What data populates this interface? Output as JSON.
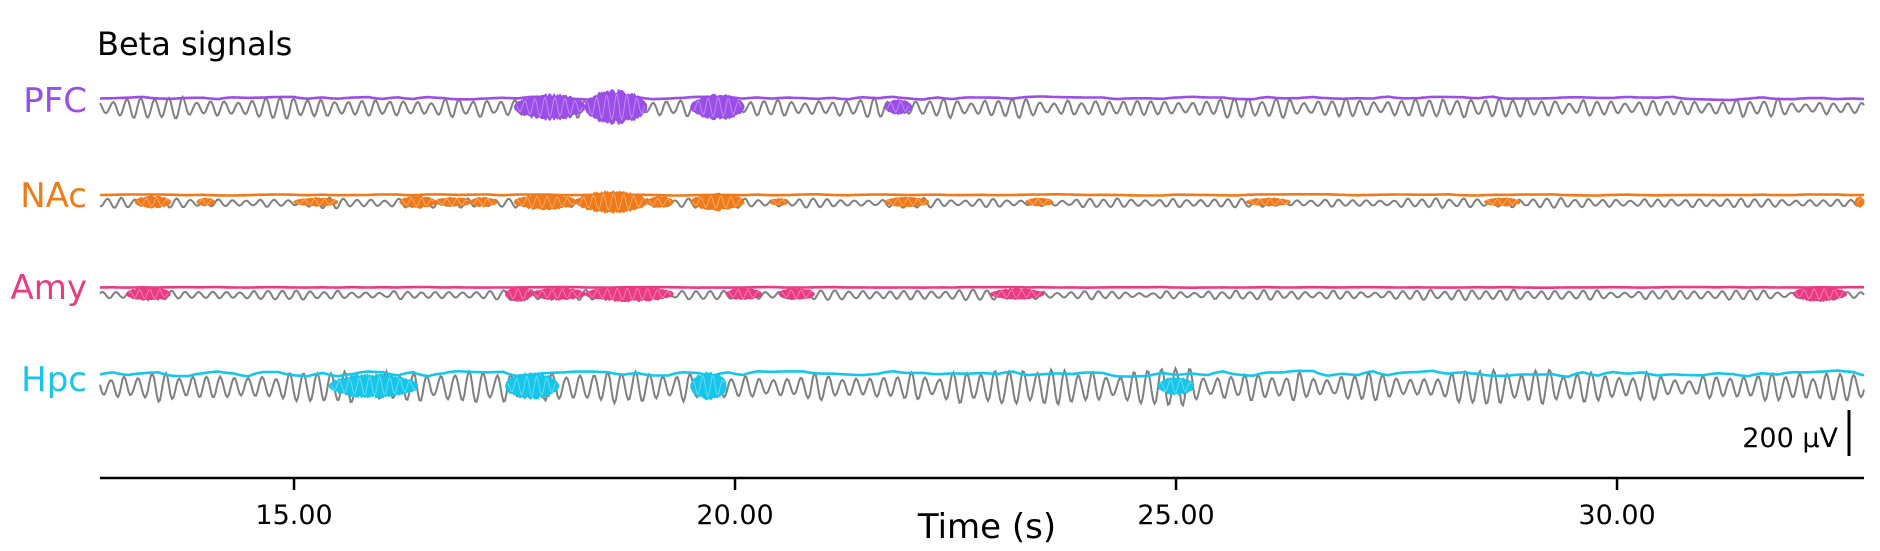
{
  "chart_data": {
    "type": "line",
    "title": "Beta signals",
    "xlabel": "Time (s)",
    "ylabel": "",
    "xlim": [
      12.8,
      32.8
    ],
    "x_ticks": [
      15.0,
      20.0,
      25.0,
      30.0
    ],
    "x_tick_labels": [
      "15.00",
      "20.00",
      "25.00",
      "30.00"
    ],
    "scale_bar_label": "200 µV",
    "raw_trace_color": "#7f7f7f",
    "series": [
      {
        "name": "PFC",
        "color": "#9b4de8",
        "raw_amplitude_uv": 60,
        "envelope_baseline_uv": 40,
        "bursts": [
          {
            "start_s": 17.5,
            "end_s": 18.3,
            "peak_uv": 100
          },
          {
            "start_s": 18.3,
            "end_s": 19.0,
            "peak_uv": 135
          },
          {
            "start_s": 19.5,
            "end_s": 20.1,
            "peak_uv": 100
          },
          {
            "start_s": 21.7,
            "end_s": 22.0,
            "peak_uv": 55
          }
        ]
      },
      {
        "name": "NAc",
        "color": "#f07a1a",
        "raw_amplitude_uv": 30,
        "envelope_baseline_uv": 15,
        "bursts": [
          {
            "start_s": 13.2,
            "end_s": 13.6,
            "peak_uv": 45
          },
          {
            "start_s": 13.9,
            "end_s": 14.1,
            "peak_uv": 30
          },
          {
            "start_s": 15.0,
            "end_s": 15.5,
            "peak_uv": 30
          },
          {
            "start_s": 16.2,
            "end_s": 16.6,
            "peak_uv": 45
          },
          {
            "start_s": 16.6,
            "end_s": 17.0,
            "peak_uv": 35
          },
          {
            "start_s": 17.0,
            "end_s": 17.3,
            "peak_uv": 35
          },
          {
            "start_s": 17.5,
            "end_s": 18.2,
            "peak_uv": 60
          },
          {
            "start_s": 18.2,
            "end_s": 19.0,
            "peak_uv": 85
          },
          {
            "start_s": 19.0,
            "end_s": 19.3,
            "peak_uv": 40
          },
          {
            "start_s": 19.5,
            "end_s": 20.1,
            "peak_uv": 65
          },
          {
            "start_s": 20.4,
            "end_s": 20.6,
            "peak_uv": 25
          },
          {
            "start_s": 21.7,
            "end_s": 22.2,
            "peak_uv": 35
          },
          {
            "start_s": 23.3,
            "end_s": 23.6,
            "peak_uv": 30
          },
          {
            "start_s": 25.8,
            "end_s": 26.3,
            "peak_uv": 30
          },
          {
            "start_s": 28.5,
            "end_s": 28.9,
            "peak_uv": 30
          },
          {
            "start_s": 32.7,
            "end_s": 32.8,
            "peak_uv": 40
          }
        ]
      },
      {
        "name": "Amy",
        "color": "#ea3a82",
        "raw_amplitude_uv": 30,
        "envelope_baseline_uv": 8,
        "bursts": [
          {
            "start_s": 13.1,
            "end_s": 13.6,
            "peak_uv": 50
          },
          {
            "start_s": 17.4,
            "end_s": 17.7,
            "peak_uv": 55
          },
          {
            "start_s": 17.7,
            "end_s": 18.3,
            "peak_uv": 45
          },
          {
            "start_s": 18.3,
            "end_s": 19.3,
            "peak_uv": 60
          },
          {
            "start_s": 19.9,
            "end_s": 20.3,
            "peak_uv": 45
          },
          {
            "start_s": 20.5,
            "end_s": 20.9,
            "peak_uv": 45
          },
          {
            "start_s": 22.9,
            "end_s": 23.5,
            "peak_uv": 40
          },
          {
            "start_s": 32.0,
            "end_s": 32.6,
            "peak_uv": 55
          }
        ]
      },
      {
        "name": "Hpc",
        "color": "#16c6ea",
        "raw_amplitude_uv": 100,
        "envelope_baseline_uv": 80,
        "bursts": [
          {
            "start_s": 15.4,
            "end_s": 16.4,
            "peak_uv": 95
          },
          {
            "start_s": 17.4,
            "end_s": 18.0,
            "peak_uv": 105
          },
          {
            "start_s": 19.5,
            "end_s": 19.9,
            "peak_uv": 115
          },
          {
            "start_s": 24.8,
            "end_s": 25.2,
            "peak_uv": 70
          }
        ]
      }
    ]
  }
}
